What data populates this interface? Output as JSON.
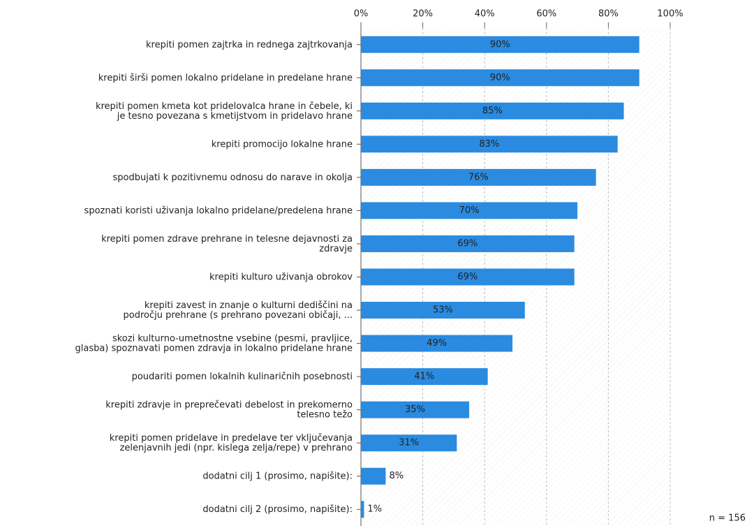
{
  "chart_data": {
    "type": "bar",
    "orientation": "horizontal",
    "categories": [
      [
        "krepiti pomen zajtrka in rednega zajtrkovanja"
      ],
      [
        "krepiti širši pomen lokalno pridelane in predelane hrane"
      ],
      [
        "krepiti pomen kmeta kot pridelovalca hrane in čebele, ki",
        "je tesno povezana s kmetijstvom in pridelavo hrane"
      ],
      [
        "krepiti promocijo lokalne hrane"
      ],
      [
        "spodbujati k pozitivnemu odnosu do narave in okolja"
      ],
      [
        "spoznati koristi uživanja lokalno pridelane/predelena hrane"
      ],
      [
        "krepiti pomen zdrave prehrane in telesne dejavnosti za",
        "zdravje"
      ],
      [
        "krepiti kulturo uživanja obrokov"
      ],
      [
        "krepiti zavest in znanje o kulturni dediščini na",
        "področju prehrane (s prehrano povezani običaji, ..."
      ],
      [
        "skozi kulturno-umetnostne vsebine (pesmi, pravljice,",
        "glasba) spoznavati pomen zdravja in lokalno pridelane hrane"
      ],
      [
        "poudariti pomen lokalnih kulinaričnih posebnosti"
      ],
      [
        "krepiti zdravje in preprečevati debelost in prekomerno",
        "telesno težo"
      ],
      [
        "krepiti pomen pridelave in predelave ter vključevanja",
        "zelenjavnih jedi (npr. kislega zelja/repe) v prehrano"
      ],
      [
        "dodatni cilj 1 (prosimo, napišite):"
      ],
      [
        "dodatni cilj 2 (prosimo, napišite):"
      ]
    ],
    "values": [
      90,
      90,
      85,
      83,
      76,
      70,
      69,
      69,
      53,
      49,
      41,
      35,
      31,
      8,
      1
    ],
    "value_labels": [
      "90%",
      "90%",
      "85%",
      "83%",
      "76%",
      "70%",
      "69%",
      "69%",
      "53%",
      "49%",
      "41%",
      "35%",
      "31%",
      "8%",
      "1%"
    ],
    "color": "#2a8be0",
    "xlim": [
      0,
      100
    ],
    "xticks": [
      {
        "value": 0,
        "label": "0%"
      },
      {
        "value": 20,
        "label": "20%"
      },
      {
        "value": 40,
        "label": "40%"
      },
      {
        "value": 60,
        "label": "60%"
      },
      {
        "value": 80,
        "label": "80%"
      },
      {
        "value": 100,
        "label": "100%"
      }
    ],
    "grid": true,
    "note": "n = 156"
  }
}
